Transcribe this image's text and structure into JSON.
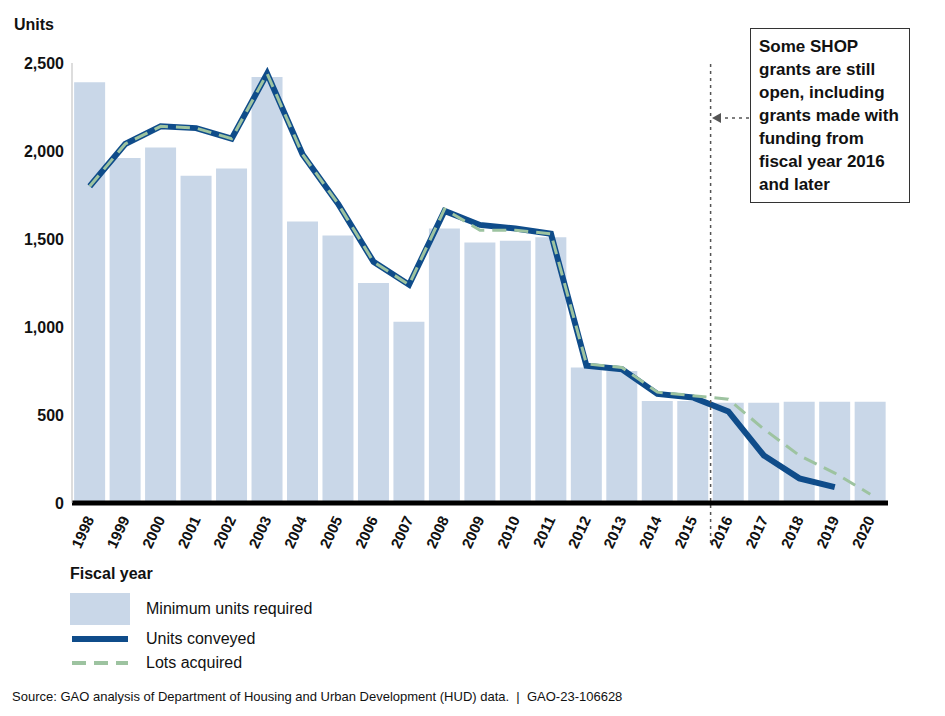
{
  "chart_data": {
    "type": "bar",
    "y_label": "Units",
    "x_label": "Fiscal year",
    "categories": [
      "1998",
      "1999",
      "2000",
      "2001",
      "2002",
      "2003",
      "2004",
      "2005",
      "2006",
      "2007",
      "2008",
      "2009",
      "2010",
      "2011",
      "2012",
      "2013",
      "2014",
      "2015",
      "2016",
      "2017",
      "2018",
      "2019",
      "2020"
    ],
    "series": [
      {
        "name": "Minimum units required",
        "type": "bar",
        "color": "#c9d7e8",
        "values": [
          2390,
          1960,
          2020,
          1860,
          1900,
          2420,
          1600,
          1520,
          1250,
          1030,
          1560,
          1480,
          1490,
          1510,
          770,
          750,
          580,
          580,
          570,
          570,
          575,
          575,
          575
        ]
      },
      {
        "name": "Units conveyed",
        "type": "line",
        "color": "#0f4c8a",
        "line_style": "solid",
        "values": [
          1800,
          2040,
          2140,
          2130,
          2070,
          2440,
          1980,
          1700,
          1370,
          1240,
          1660,
          1580,
          1560,
          1530,
          780,
          760,
          620,
          600,
          520,
          270,
          140,
          90,
          null
        ]
      },
      {
        "name": "Lots acquired",
        "type": "line",
        "color": "#9dc3a0",
        "line_style": "dashed",
        "values": [
          1800,
          2040,
          2140,
          2130,
          2070,
          2440,
          1980,
          1700,
          1370,
          1240,
          1670,
          1550,
          1550,
          1530,
          790,
          770,
          630,
          610,
          590,
          420,
          270,
          170,
          50
        ]
      }
    ],
    "ylim": [
      0,
      2500
    ],
    "yticks": [
      0,
      500,
      {
        "value": 1000,
        "label": "1,000"
      },
      {
        "value": 1500,
        "label": "1,500"
      },
      {
        "value": 2000,
        "label": "2,000"
      },
      {
        "value": 2500,
        "label": "2,500"
      }
    ],
    "annotation": {
      "text": "Some SHOP grants are still open, including grants made with funding from fiscal year 2016 and later",
      "x": "2016"
    },
    "source": "Source: GAO analysis of Department of Housing and Urban Development (HUD) data.  |  GAO-23-106628"
  }
}
